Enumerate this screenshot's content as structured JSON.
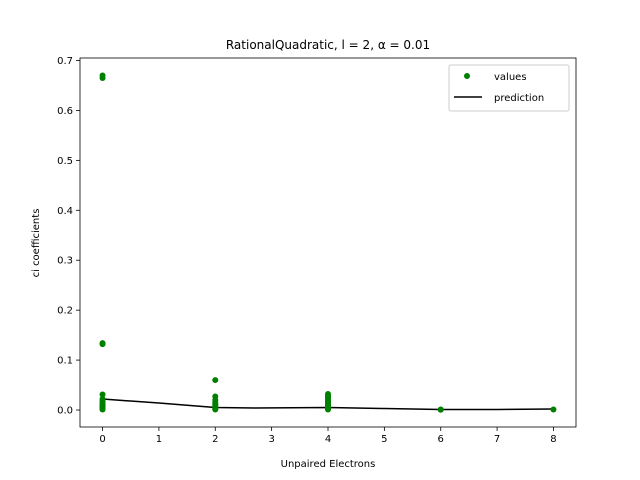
{
  "chart_data": {
    "type": "scatter",
    "title": "RationalQuadratic, l = 2, α = 0.01",
    "xlabel": "Unpaired Electrons",
    "ylabel": "ci coefficients",
    "xlim": [
      -0.4,
      8.4
    ],
    "ylim": [
      -0.034,
      0.705
    ],
    "xticks": [
      0,
      1,
      2,
      3,
      4,
      5,
      6,
      7,
      8
    ],
    "yticks": [
      0.0,
      0.1,
      0.2,
      0.3,
      0.4,
      0.5,
      0.6,
      0.7
    ],
    "xtick_labels": [
      "0",
      "1",
      "2",
      "3",
      "4",
      "5",
      "6",
      "7",
      "8"
    ],
    "ytick_labels": [
      "0.0",
      "0.1",
      "0.2",
      "0.3",
      "0.4",
      "0.5",
      "0.6",
      "0.7"
    ],
    "grid": false,
    "legend": {
      "placement": "top-right",
      "entries": [
        "values",
        "prediction"
      ]
    },
    "colors": {
      "values": "#008000",
      "prediction": "#000000"
    },
    "series": [
      {
        "name": "values",
        "kind": "points",
        "x": [
          0,
          0,
          0,
          0,
          0,
          0,
          0,
          0,
          0,
          0,
          0,
          0,
          0,
          0,
          0,
          0,
          0,
          0,
          2,
          2,
          2,
          2,
          2,
          2,
          2,
          2,
          2,
          2,
          2,
          4,
          4,
          4,
          4,
          4,
          4,
          4,
          4,
          4,
          4,
          4,
          4,
          4,
          4,
          4,
          6,
          6,
          8
        ],
        "y": [
          0.67,
          0.665,
          0.134,
          0.132,
          0.031,
          0.022,
          0.018,
          0.015,
          0.012,
          0.01,
          0.008,
          0.007,
          0.006,
          0.005,
          0.004,
          0.003,
          0.002,
          0.001,
          0.06,
          0.027,
          0.02,
          0.015,
          0.012,
          0.01,
          0.007,
          0.005,
          0.004,
          0.002,
          0.001,
          0.032,
          0.028,
          0.025,
          0.022,
          0.019,
          0.017,
          0.015,
          0.012,
          0.01,
          0.008,
          0.006,
          0.005,
          0.004,
          0.002,
          0.001,
          0.001,
          0.0005,
          0.001
        ]
      },
      {
        "name": "prediction",
        "kind": "line",
        "x": [
          0,
          1,
          2,
          2.7,
          4,
          5,
          6,
          7,
          8
        ],
        "y": [
          0.022,
          0.014,
          0.005,
          0.004,
          0.005,
          0.003,
          0.001,
          0.001,
          0.002
        ]
      }
    ]
  }
}
